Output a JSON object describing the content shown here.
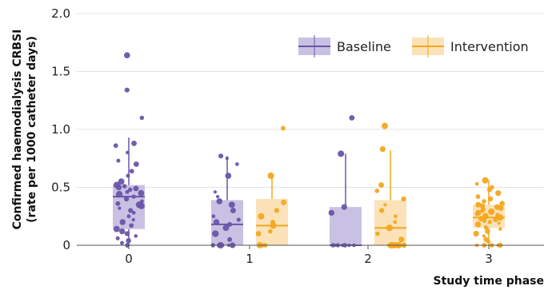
{
  "chart_data": {
    "type": "box",
    "title": "",
    "xlabel": "Study time phase",
    "ylabel_line1": "Confirmed haemodialysis CRBSI",
    "ylabel_line2": "(rate per 1000 catheter days)",
    "ylim": [
      0,
      2.0
    ],
    "yticks": [
      {
        "value": 0,
        "label": "0"
      },
      {
        "value": 0.5,
        "label": "0.5"
      },
      {
        "value": 1.0,
        "label": "1.0"
      },
      {
        "value": 1.5,
        "label": "1.5"
      },
      {
        "value": 2.0,
        "label": "2.0"
      }
    ],
    "categories": [
      "0",
      "1",
      "2",
      "3"
    ],
    "grid": "horizontal",
    "legend_position": "top-right",
    "colors": {
      "Baseline": "#6a55a8",
      "Baseline_box": "#c9c1e3",
      "Intervention": "#f2a81d",
      "Intervention_box": "#fbe2b9"
    },
    "series": [
      {
        "name": "Baseline",
        "boxes": [
          {
            "phase": "0",
            "whisker_low": 0,
            "q1": 0.14,
            "median": 0.42,
            "q3": 0.52,
            "whisker_high": 0.93,
            "points": [
              0.04,
              0.06,
              0.1,
              0.14,
              0.17,
              0.2,
              0.22,
              0.25,
              0.28,
              0.3,
              0.32,
              0.34,
              0.36,
              0.38,
              0.4,
              0.42,
              0.44,
              0.46,
              0.48,
              0.5,
              0.51,
              0.52,
              0.55,
              0.6,
              0.64,
              0.7,
              0.73,
              0.8,
              0.86,
              0.88,
              1.1,
              1.34,
              1.64,
              0,
              0.02,
              0.08,
              0.12,
              0.35,
              0.45,
              0.49
            ]
          },
          {
            "phase": "1",
            "whisker_low": 0,
            "q1": 0,
            "median": 0.18,
            "q3": 0.39,
            "whisker_high": 0.77,
            "points": [
              0,
              0,
              0,
              0,
              0,
              0,
              0.05,
              0.1,
              0.15,
              0.18,
              0.2,
              0.22,
              0.25,
              0.3,
              0.35,
              0.38,
              0.42,
              0.46,
              0.6,
              0.7,
              0.75,
              0.77
            ]
          },
          {
            "phase": "2",
            "whisker_low": 0,
            "q1": 0,
            "median": 0,
            "q3": 0.33,
            "whisker_high": 0.79,
            "points": [
              0,
              0,
              0,
              0,
              0,
              0,
              0,
              0.28,
              0.33,
              0.79,
              1.1
            ]
          }
        ]
      },
      {
        "name": "Intervention",
        "boxes": [
          {
            "phase": "1",
            "whisker_low": 0,
            "q1": 0,
            "median": 0.17,
            "q3": 0.4,
            "whisker_high": 0.6,
            "points": [
              0,
              0,
              0,
              0,
              0.1,
              0.12,
              0.17,
              0.2,
              0.25,
              0.3,
              0.37,
              0.6,
              1.01
            ]
          },
          {
            "phase": "2",
            "whisker_low": 0,
            "q1": 0,
            "median": 0.15,
            "q3": 0.39,
            "whisker_high": 0.82,
            "points": [
              0,
              0,
              0,
              0,
              0,
              0,
              0,
              0,
              0,
              0.05,
              0.1,
              0.15,
              0.2,
              0.25,
              0.3,
              0.35,
              0.4,
              0.47,
              0.52,
              0.83,
              1.03
            ]
          },
          {
            "phase": "3",
            "whisker_low": 0,
            "q1": 0.15,
            "median": 0.24,
            "q3": 0.35,
            "whisker_high": 0.56,
            "points": [
              0,
              0,
              0,
              0,
              0,
              0.03,
              0.05,
              0.08,
              0.1,
              0.12,
              0.14,
              0.15,
              0.16,
              0.18,
              0.19,
              0.2,
              0.21,
              0.22,
              0.23,
              0.24,
              0.25,
              0.26,
              0.27,
              0.28,
              0.29,
              0.3,
              0.31,
              0.32,
              0.33,
              0.34,
              0.35,
              0.36,
              0.38,
              0.4,
              0.42,
              0.45,
              0.48,
              0.5,
              0.53,
              0.56
            ]
          }
        ]
      }
    ]
  }
}
